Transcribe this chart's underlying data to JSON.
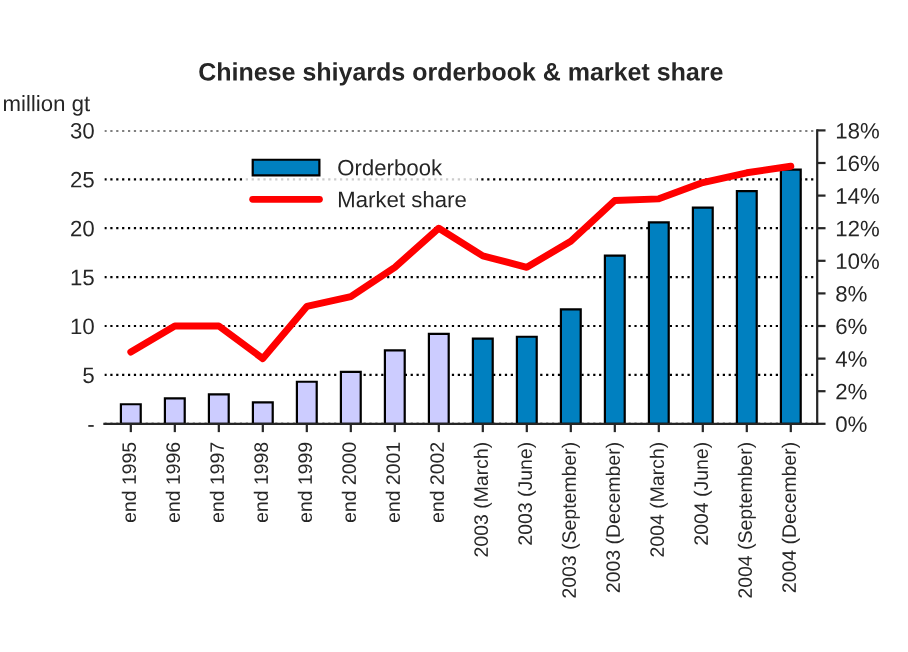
{
  "chart_data": {
    "type": "bar",
    "title": "Chinese shiyards orderbook & market share",
    "ylabel": "million gt",
    "categories": [
      "end 1995",
      "end 1996",
      "end 1997",
      "end 1998",
      "end 1999",
      "end 2000",
      "end 2001",
      "end 2002",
      "2003 (March)",
      "2003 (June)",
      "2003 (September)",
      "2003 (December)",
      "2004 (March)",
      "2004 (June)",
      "2004 (September)",
      "2004 (December)"
    ],
    "series": [
      {
        "name": "Orderbook",
        "color": "#0080c0",
        "colors": [
          "#ccccff",
          "#ccccff",
          "#ccccff",
          "#ccccff",
          "#ccccff",
          "#ccccff",
          "#ccccff",
          "#ccccff",
          "#0080c0",
          "#0080c0",
          "#0080c0",
          "#0080c0",
          "#0080c0",
          "#0080c0",
          "#0080c0",
          "#0080c0"
        ],
        "values": [
          2.0,
          2.6,
          3.0,
          2.2,
          4.3,
          5.3,
          7.5,
          9.2,
          8.7,
          8.9,
          11.7,
          17.2,
          20.6,
          22.1,
          23.8,
          26.0
        ]
      },
      {
        "name": "Market share",
        "type": "line",
        "axis": "y2",
        "color": "#ff0000",
        "values": [
          4.4,
          6.0,
          6.0,
          4.0,
          7.2,
          7.8,
          9.6,
          12.0,
          10.3,
          9.6,
          11.2,
          13.7,
          13.8,
          14.8,
          15.4,
          15.8
        ]
      }
    ],
    "ylim": [
      0,
      30
    ],
    "yticks": [
      {
        "value": 0,
        "label": "-"
      },
      5,
      10,
      15,
      20,
      25,
      30
    ],
    "y2lim": [
      0,
      18
    ],
    "y2ticks": [
      {
        "value": 0,
        "label": "0%"
      },
      {
        "value": 2,
        "label": "2%"
      },
      {
        "value": 4,
        "label": "4%"
      },
      {
        "value": 6,
        "label": "6%"
      },
      {
        "value": 8,
        "label": "8%"
      },
      {
        "value": 10,
        "label": "10%"
      },
      {
        "value": 12,
        "label": "12%"
      },
      {
        "value": 14,
        "label": "14%"
      },
      {
        "value": 16,
        "label": "16%"
      },
      {
        "value": 18,
        "label": "18%"
      }
    ],
    "grid": "y",
    "legend": "top left",
    "line_style": "solid",
    "marker": "none"
  }
}
